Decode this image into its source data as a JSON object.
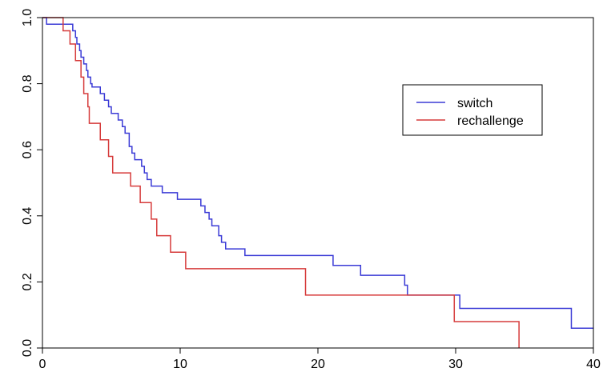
{
  "chart_data": {
    "type": "line",
    "step": true,
    "title": "",
    "xlabel": "",
    "ylabel": "",
    "xlim": [
      0,
      40
    ],
    "ylim": [
      0,
      1
    ],
    "x_ticks": [
      0,
      10,
      20,
      30,
      40
    ],
    "y_ticks": [
      0.0,
      0.2,
      0.4,
      0.6,
      0.8,
      1.0
    ],
    "x_tick_labels": [
      "0",
      "10",
      "20",
      "30",
      "40"
    ],
    "y_tick_labels": [
      "0.0",
      "0.2",
      "0.4",
      "0.6",
      "0.8",
      "1.0"
    ],
    "grid": false,
    "legend_position": "top-right",
    "series": [
      {
        "name": "switch",
        "color": "#3b3bd6",
        "points": [
          [
            0,
            1.0
          ],
          [
            0.3,
            0.98
          ],
          [
            2.2,
            0.96
          ],
          [
            2.4,
            0.94
          ],
          [
            2.5,
            0.92
          ],
          [
            2.7,
            0.9
          ],
          [
            2.8,
            0.88
          ],
          [
            3.0,
            0.86
          ],
          [
            3.2,
            0.84
          ],
          [
            3.3,
            0.82
          ],
          [
            3.5,
            0.8
          ],
          [
            3.6,
            0.79
          ],
          [
            4.2,
            0.77
          ],
          [
            4.5,
            0.75
          ],
          [
            4.8,
            0.73
          ],
          [
            5.0,
            0.71
          ],
          [
            5.5,
            0.69
          ],
          [
            5.8,
            0.67
          ],
          [
            6.0,
            0.65
          ],
          [
            6.3,
            0.61
          ],
          [
            6.5,
            0.59
          ],
          [
            6.7,
            0.57
          ],
          [
            7.2,
            0.55
          ],
          [
            7.4,
            0.53
          ],
          [
            7.6,
            0.51
          ],
          [
            7.9,
            0.49
          ],
          [
            8.7,
            0.47
          ],
          [
            9.8,
            0.45
          ],
          [
            11.5,
            0.43
          ],
          [
            11.8,
            0.41
          ],
          [
            12.1,
            0.39
          ],
          [
            12.3,
            0.37
          ],
          [
            12.8,
            0.34
          ],
          [
            13.0,
            0.32
          ],
          [
            13.3,
            0.3
          ],
          [
            14.7,
            0.28
          ],
          [
            21.1,
            0.25
          ],
          [
            23.1,
            0.22
          ],
          [
            26.3,
            0.19
          ],
          [
            26.5,
            0.16
          ],
          [
            30.3,
            0.12
          ],
          [
            38.4,
            0.06
          ],
          [
            40.0,
            0.06
          ]
        ]
      },
      {
        "name": "rechallenge",
        "color": "#d63b3b",
        "points": [
          [
            0,
            1.0
          ],
          [
            1.5,
            0.96
          ],
          [
            2.0,
            0.92
          ],
          [
            2.4,
            0.87
          ],
          [
            2.8,
            0.82
          ],
          [
            3.0,
            0.77
          ],
          [
            3.3,
            0.73
          ],
          [
            3.4,
            0.68
          ],
          [
            4.2,
            0.63
          ],
          [
            4.8,
            0.58
          ],
          [
            5.1,
            0.53
          ],
          [
            6.4,
            0.49
          ],
          [
            7.1,
            0.44
          ],
          [
            7.9,
            0.39
          ],
          [
            8.3,
            0.34
          ],
          [
            9.3,
            0.29
          ],
          [
            10.4,
            0.24
          ],
          [
            19.1,
            0.16
          ],
          [
            29.9,
            0.08
          ],
          [
            34.6,
            0.0
          ]
        ]
      }
    ]
  }
}
